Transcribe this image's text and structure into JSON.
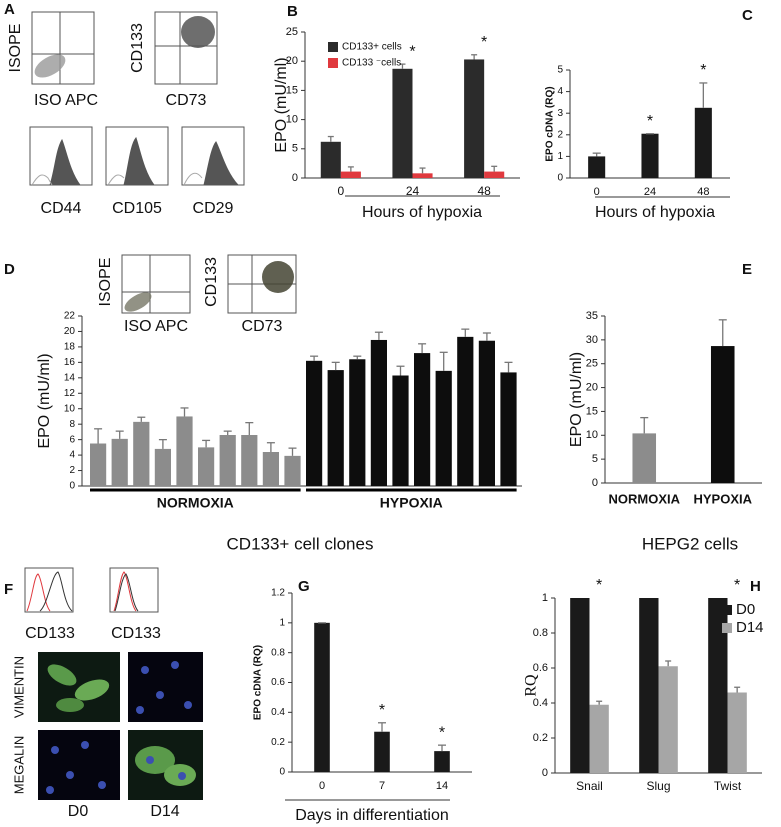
{
  "panel_a": {
    "label": "A",
    "plots": [
      {
        "ylabel": "ISOPE",
        "xlabel": "ISO APC"
      },
      {
        "ylabel": "CD133",
        "xlabel": "CD73"
      }
    ],
    "histograms": [
      "CD44",
      "CD105",
      "CD29"
    ]
  },
  "chart_data": [
    {
      "type": "bar",
      "label": "B",
      "ylabel": "EPO (mU/ml)",
      "xlabel": "Hours of hypoxia",
      "categories": [
        "0",
        "24",
        "48"
      ],
      "series": [
        {
          "name": "CD133+ cells",
          "color": "#2b2b2b",
          "values": [
            6.2,
            18.7,
            20.3
          ],
          "errors": [
            0.9,
            0.8,
            0.8
          ]
        },
        {
          "name": "CD133 ⁻cells",
          "color": "#e0393e",
          "values": [
            1.1,
            0.8,
            1.1
          ],
          "errors": [
            0.8,
            0.9,
            0.9
          ]
        }
      ],
      "ylim": [
        0,
        25
      ],
      "yticks": [
        0,
        5,
        10,
        15,
        20,
        25
      ],
      "annotations": [
        {
          "x": "24",
          "text": "*"
        },
        {
          "x": "48",
          "text": "*"
        }
      ]
    },
    {
      "type": "bar",
      "label": "C",
      "ylabel": "EPO cDNA  (RQ)",
      "xlabel": "Hours of hypoxia",
      "categories": [
        "0",
        "24",
        "48"
      ],
      "values": [
        1.0,
        2.05,
        3.25
      ],
      "errors": [
        0.15,
        0,
        1.15
      ],
      "color": "#1a1a1a",
      "ylim": [
        0,
        5
      ],
      "yticks": [
        0,
        1,
        2,
        3,
        4,
        5
      ],
      "annotations": [
        {
          "x": "24",
          "text": "*"
        },
        {
          "x": "48",
          "text": "*"
        }
      ]
    },
    {
      "type": "bar_groups",
      "label": "D",
      "ylabel": "EPO (mU/ml)",
      "caption": "CD133+ cell clones",
      "series": [
        {
          "name": "NORMOXIA",
          "color": "#8c8c8c",
          "values": [
            5.5,
            6.1,
            8.3,
            4.8,
            9.0,
            5.0,
            6.6,
            6.6,
            4.4,
            3.9
          ],
          "errors": [
            1.9,
            1.0,
            0.6,
            1.2,
            1.1,
            0.9,
            0.5,
            1.6,
            1.2,
            1.0
          ]
        },
        {
          "name": "HYPOXIA",
          "color": "#0d0d0d",
          "values": [
            16.2,
            15.0,
            16.4,
            18.9,
            14.3,
            17.2,
            14.9,
            19.3,
            18.8,
            14.7
          ],
          "errors": [
            0.6,
            1.0,
            0.4,
            1.0,
            1.2,
            1.2,
            2.4,
            1.0,
            1.0,
            1.3
          ]
        }
      ],
      "ylim": [
        0,
        22
      ],
      "yticks": [
        0,
        2,
        4,
        6,
        8,
        10,
        12,
        14,
        16,
        18,
        20,
        22
      ],
      "insets": [
        {
          "ylabel": "ISOPE",
          "xlabel": "ISO APC"
        },
        {
          "ylabel": "CD133",
          "xlabel": "CD73"
        }
      ]
    },
    {
      "type": "bar",
      "label": "E",
      "ylabel": "EPO (mU/ml)",
      "caption": "HEPG2 cells",
      "categories": [
        "NORMOXIA",
        "HYPOXIA"
      ],
      "values": [
        10.4,
        28.7
      ],
      "errors": [
        3.3,
        5.5
      ],
      "colors": [
        "#8c8c8c",
        "#0d0d0d"
      ],
      "ylim": [
        0,
        35
      ],
      "yticks": [
        0,
        5,
        10,
        15,
        20,
        25,
        30,
        35
      ]
    },
    {
      "type": "bar",
      "label": "G",
      "ylabel": "EPO cDNA  (RQ)",
      "xlabel": "Days in differentiation",
      "categories": [
        "0",
        "7",
        "14"
      ],
      "values": [
        1.0,
        0.27,
        0.14
      ],
      "errors": [
        0,
        0.06,
        0.04
      ],
      "color": "#1a1a1a",
      "ylim": [
        0,
        1.2
      ],
      "yticks": [
        0,
        0.2,
        0.4,
        0.6,
        0.8,
        1,
        1.2
      ],
      "annotations": [
        {
          "x": "7",
          "text": "*"
        },
        {
          "x": "14",
          "text": "*"
        }
      ]
    },
    {
      "type": "bar",
      "label": "H",
      "ylabel": "RQ",
      "categories": [
        "Snail",
        "Slug",
        "Twist"
      ],
      "series": [
        {
          "name": "D0",
          "color": "#1a1a1a",
          "values": [
            1,
            1,
            1
          ]
        },
        {
          "name": "D14",
          "color": "#a6a6a6",
          "values": [
            0.39,
            0.61,
            0.46
          ],
          "errors": [
            0.02,
            0.03,
            0.03
          ]
        }
      ],
      "ylim": [
        0,
        1
      ],
      "yticks": [
        0,
        0.2,
        0.4,
        0.6,
        0.8,
        1
      ],
      "annotations": [
        {
          "x": "Snail",
          "text": "*"
        },
        {
          "x": "Twist",
          "text": "*"
        }
      ]
    }
  ],
  "panel_f": {
    "label": "F",
    "histograms": [
      "CD133",
      "CD133"
    ],
    "rows": [
      "VIMENTIN",
      "MEGALIN"
    ],
    "columns": [
      "D0",
      "D14"
    ]
  }
}
